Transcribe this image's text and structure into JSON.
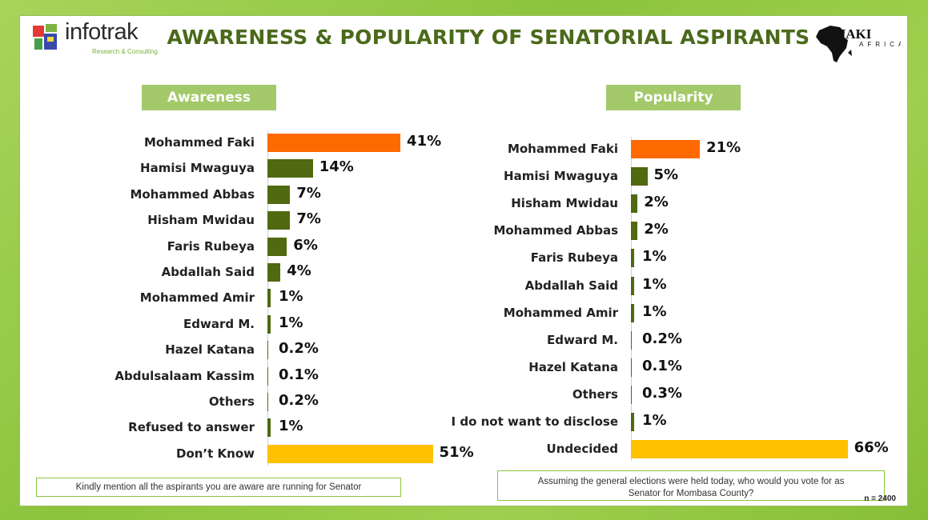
{
  "title": "AWARENESS & POPULARITY OF SENATORIAL ASPIRANTS",
  "logo": {
    "name": "infotrak",
    "tagline": "Research & Consulting"
  },
  "partner_logo": {
    "text": "HAKI",
    "sub": "AFRICA"
  },
  "colors": {
    "highlight": "#ff6a00",
    "bar": "#4f6a10",
    "undecided": "#ffc000",
    "label_bg": "#a3c96a",
    "title": "#4a6a1a"
  },
  "sample_size": "n = 2400",
  "chart_data": [
    {
      "type": "bar",
      "orientation": "horizontal",
      "title": "Awareness",
      "question": "Kindly mention all the aspirants you are aware are running for Senator",
      "categories": [
        "Mohammed Faki",
        "Hamisi Mwaguya",
        "Mohammed Abbas",
        "Hisham Mwidau",
        "Faris Rubeya",
        "Abdallah Said",
        "Mohammed Amir",
        "Edward M.",
        "Hazel Katana",
        "Abdulsalaam Kassim",
        "Others",
        "Refused to answer",
        "Don’t Know"
      ],
      "values": [
        41,
        14,
        7,
        7,
        6,
        4,
        1,
        1,
        0.2,
        0.1,
        0.2,
        1,
        51
      ],
      "value_labels": [
        "41%",
        "14%",
        "7%",
        "7%",
        "6%",
        "4%",
        "1%",
        "1%",
        "0.2%",
        "0.1%",
        "0.2%",
        "1%",
        "51%"
      ],
      "bar_colors": [
        "highlight",
        "bar",
        "bar",
        "bar",
        "bar",
        "bar",
        "bar",
        "bar",
        "bar",
        "bar",
        "bar",
        "bar",
        "undecided"
      ]
    },
    {
      "type": "bar",
      "orientation": "horizontal",
      "title": "Popularity",
      "question": "Assuming the general elections were held today, who would you vote for as Senator for Mombasa County?",
      "categories": [
        "Mohammed Faki",
        "Hamisi Mwaguya",
        "Hisham Mwidau",
        "Mohammed Abbas",
        "Faris Rubeya",
        "Abdallah Said",
        "Mohammed Amir",
        "Edward M.",
        "Hazel Katana",
        "Others",
        "I do not want to disclose",
        "Undecided"
      ],
      "values": [
        21,
        5,
        2,
        2,
        1,
        1,
        1,
        0.2,
        0.1,
        0.3,
        1,
        66
      ],
      "value_labels": [
        "21%",
        "5%",
        "2%",
        "2%",
        "1%",
        "1%",
        "1%",
        "0.2%",
        "0.1%",
        "0.3%",
        "1%",
        "66%"
      ],
      "bar_colors": [
        "highlight",
        "bar",
        "bar",
        "bar",
        "bar",
        "bar",
        "bar",
        "bar",
        "bar",
        "bar",
        "bar",
        "undecided"
      ]
    }
  ]
}
